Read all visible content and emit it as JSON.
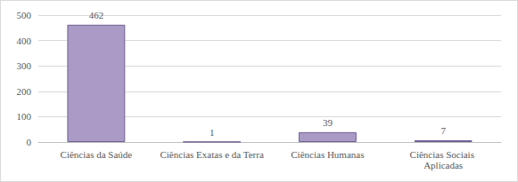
{
  "chart_data": {
    "type": "bar",
    "categories": [
      "Ciências da Saúde",
      "Ciências Exatas e da Terra",
      "Ciências Humanas",
      "Ciências Sociais Aplicadas"
    ],
    "values": [
      462,
      1,
      39,
      7
    ],
    "color": "#a99bc6",
    "ylim": [
      0,
      500
    ],
    "yticks": [
      0,
      100,
      200,
      300,
      400,
      500
    ],
    "grid": true,
    "data_labels": true
  }
}
